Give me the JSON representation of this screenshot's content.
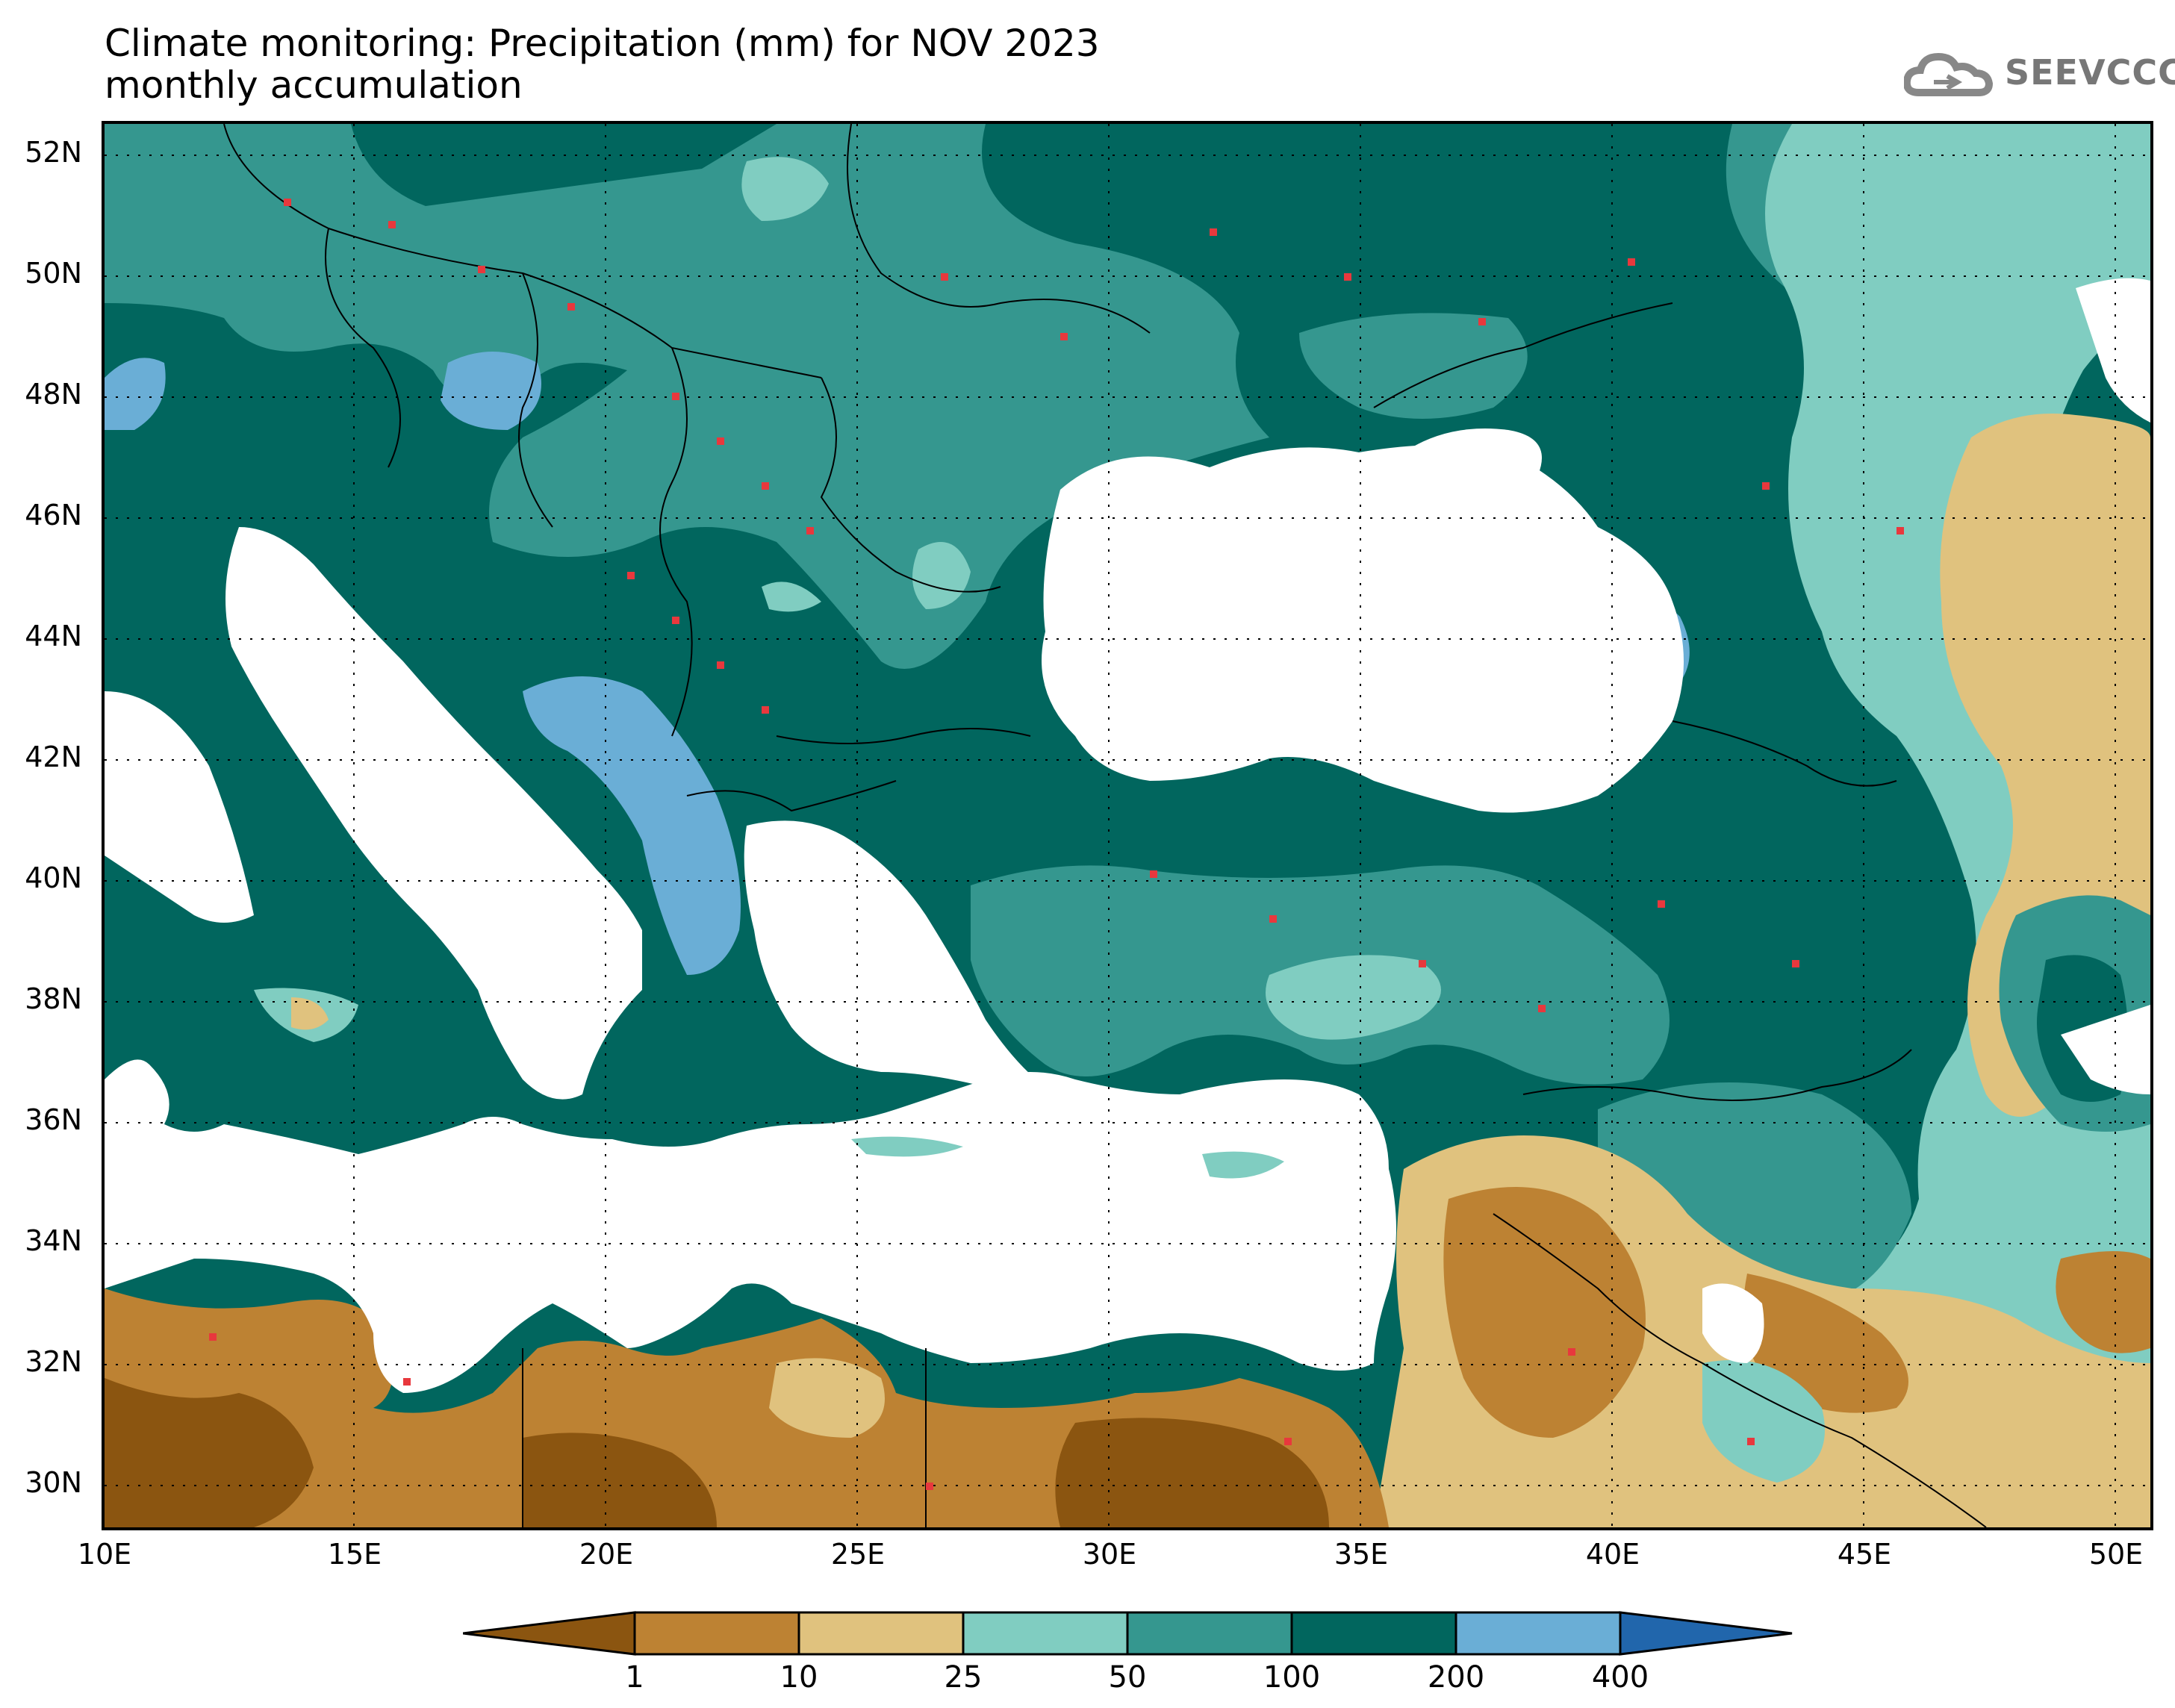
{
  "title": {
    "line1": "Climate monitoring: Precipitation (mm) for NOV 2023",
    "line2": "monthly accumulation"
  },
  "logo": {
    "text": "SEEVCCC",
    "icon": "cloud-icon"
  },
  "axes": {
    "lat_labels": [
      "52N",
      "50N",
      "48N",
      "46N",
      "44N",
      "42N",
      "40N",
      "38N",
      "36N",
      "34N",
      "32N",
      "30N"
    ],
    "lon_labels": [
      "10E",
      "15E",
      "20E",
      "25E",
      "30E",
      "35E",
      "40E",
      "45E",
      "50E"
    ]
  },
  "legend": {
    "thresholds": [
      "1",
      "10",
      "25",
      "50",
      "100",
      "200",
      "400"
    ],
    "colors": [
      "#8b5510",
      "#bd8233",
      "#e0c27e",
      "#80cdc1",
      "#35978f",
      "#01665e",
      "#6aaed6",
      "#2166ac"
    ]
  }
}
